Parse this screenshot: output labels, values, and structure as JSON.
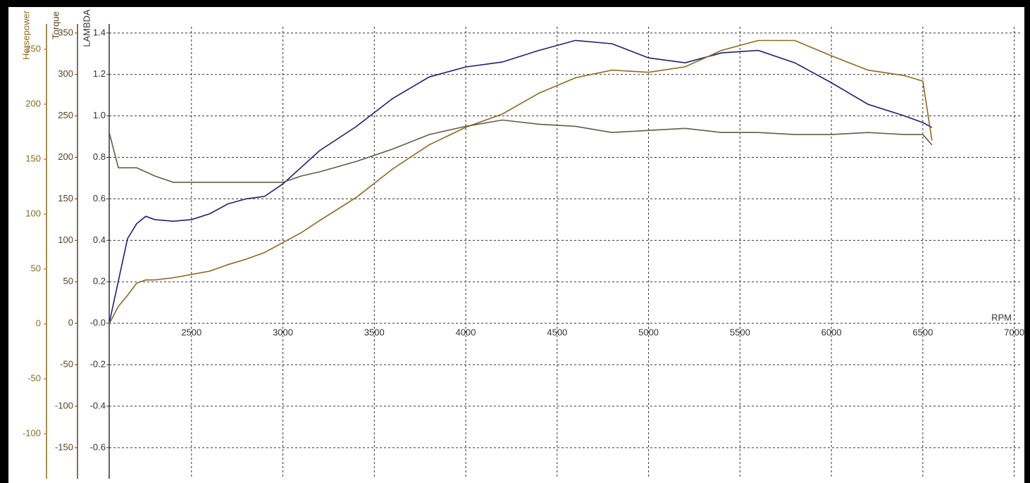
{
  "chart_data": {
    "type": "line",
    "xlabel": "RPM",
    "ylabel": "Torque",
    "y2label": "Horsepower",
    "y3label": "LAMBDA",
    "x": [
      2050,
      2100,
      2150,
      2200,
      2250,
      2300,
      2400,
      2500,
      2600,
      2700,
      2800,
      2900,
      3000,
      3100,
      3200,
      3400,
      3600,
      3800,
      4000,
      4200,
      4400,
      4600,
      4800,
      5000,
      5200,
      5400,
      5600,
      5800,
      6000,
      6200,
      6400,
      6500,
      6550
    ],
    "xlim": [
      2050,
      7040
    ],
    "xticks": [
      2500,
      3000,
      3500,
      4000,
      4500,
      5000,
      5500,
      6000,
      6500,
      7000
    ],
    "ylim": [
      -187.5,
      357.5
    ],
    "yticks": [
      -150,
      -100,
      -50,
      0,
      50,
      100,
      150,
      200,
      250,
      300,
      350
    ],
    "y2lim": [
      -141,
      270.5
    ],
    "y2ticks": [
      -100,
      -50,
      0,
      50,
      100,
      150,
      200,
      250
    ],
    "y3lim": [
      -0.75,
      1.43
    ],
    "y3ticks": [
      -0.6,
      -0.4,
      -0.2,
      {
        "value": 0,
        "label": "-0.0"
      },
      0.2,
      0.4,
      0.6,
      0.8,
      {
        "value": 1,
        "label": "1.0"
      },
      1.2,
      1.4
    ],
    "grid": true,
    "series": [
      {
        "color": "#1e1e78",
        "axis": "y",
        "values": [
          0,
          51,
          102,
          120,
          129,
          125,
          123,
          125,
          132,
          144,
          150,
          153,
          168,
          188,
          208,
          237,
          271,
          297,
          309,
          315,
          329,
          341,
          337,
          320,
          314,
          326,
          329,
          314,
          290,
          264,
          250,
          242,
          236
        ]
      },
      {
        "color": "#8c6a1e",
        "axis": "y2",
        "values": [
          0,
          16,
          26,
          37,
          40,
          40,
          42,
          45,
          48,
          54,
          59,
          65,
          74,
          83,
          94,
          115,
          141,
          163,
          179,
          191,
          210,
          224,
          231,
          229,
          234,
          249,
          258,
          258,
          244,
          231,
          226,
          221,
          167
        ]
      },
      {
        "color": "#5e5e46",
        "axis": "y3",
        "values": [
          0.92,
          0.75,
          0.75,
          0.75,
          0.73,
          0.71,
          0.68,
          0.68,
          0.68,
          0.68,
          0.68,
          0.68,
          0.68,
          0.71,
          0.73,
          0.78,
          0.84,
          0.91,
          0.95,
          0.98,
          0.96,
          0.95,
          0.92,
          0.93,
          0.94,
          0.92,
          0.92,
          0.91,
          0.91,
          0.92,
          0.91,
          0.91,
          0.86
        ]
      }
    ]
  }
}
